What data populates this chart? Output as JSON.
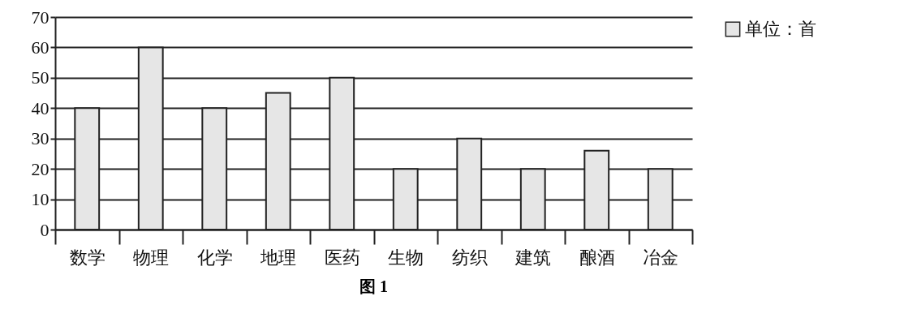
{
  "chart_data": {
    "type": "bar",
    "title": "图 1",
    "categories": [
      "数学",
      "物理",
      "化学",
      "地理",
      "医药",
      "生物",
      "纺织",
      "建筑",
      "酿酒",
      "冶金"
    ],
    "series": [
      {
        "name": "单位：首",
        "color": "#e6e6e6",
        "values": [
          40,
          60,
          40,
          45,
          50,
          20,
          30,
          20,
          26,
          20
        ]
      }
    ],
    "ylim": [
      0,
      70
    ],
    "yticks": [
      0,
      10,
      20,
      30,
      40,
      50,
      60,
      70
    ],
    "grid": "y",
    "legend": "right"
  }
}
